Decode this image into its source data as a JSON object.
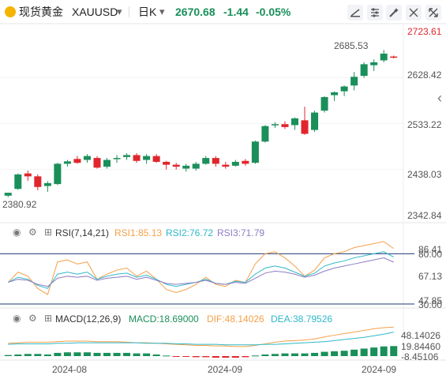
{
  "header": {
    "symbol_name": "现货黄金",
    "symbol_code": "XAUUSD",
    "timeframe": "日K",
    "price": "2670.68",
    "change": "-1.44",
    "change_pct": "-0.05%",
    "icons": [
      "coin-icon",
      "symbol-dropdown-icon",
      "timeframe-dropdown-icon",
      "draw-line-icon",
      "settings-icon",
      "magic-icon",
      "collapse-icon",
      "expand-icon"
    ]
  },
  "price_panel": {
    "y_ticks": [
      "2723.61",
      "2628.42",
      "2533.22",
      "2438.03",
      "2342.84"
    ],
    "high_label": "2685.53",
    "low_label": "2380.92",
    "side_arrow": "‹"
  },
  "rsi_panel": {
    "title": "RSI(7,14,21)",
    "rsi1": "RSI1:85.13",
    "rsi2": "RSI2:76.72",
    "rsi3": "RSI3:71.79",
    "y_ticks": [
      "86.41",
      "80.00",
      "67.13",
      "47.85",
      "30.00"
    ]
  },
  "macd_panel": {
    "title": "MACD(12,26,9)",
    "macd": "MACD:18.69000",
    "dif": "DIF:48.14026",
    "dea": "DEA:38.79526",
    "y_ticks": [
      "48.14026",
      "19.84460",
      "-8.45106"
    ]
  },
  "x_axis": [
    "2024-08",
    "2024-09",
    "2024-09"
  ],
  "colors": {
    "up": "#1a8f5a",
    "down": "#e0262c",
    "rsi1": "#f5a04a",
    "rsi2": "#2fb8c8",
    "rsi3": "#8e7cc3",
    "dif": "#f5a04a",
    "dea": "#2fb8c8",
    "accent": "#1e6fd9"
  },
  "chart_data": {
    "type": "candlestick",
    "ylim": [
      2342.84,
      2723.61
    ],
    "candles": [
      [
        2384,
        2390,
        2380.92,
        2390
      ],
      [
        2398,
        2430,
        2396,
        2428
      ],
      [
        2430,
        2436,
        2415,
        2424
      ],
      [
        2424,
        2428,
        2395,
        2402
      ],
      [
        2404,
        2414,
        2392,
        2410
      ],
      [
        2408,
        2452,
        2406,
        2450
      ],
      [
        2450,
        2458,
        2444,
        2455
      ],
      [
        2460,
        2466,
        2450,
        2452
      ],
      [
        2458,
        2470,
        2452,
        2466
      ],
      [
        2462,
        2466,
        2440,
        2442
      ],
      [
        2444,
        2462,
        2440,
        2458
      ],
      [
        2460,
        2468,
        2452,
        2462
      ],
      [
        2464,
        2472,
        2458,
        2468
      ],
      [
        2468,
        2472,
        2452,
        2456
      ],
      [
        2458,
        2470,
        2450,
        2466
      ],
      [
        2466,
        2470,
        2452,
        2454
      ],
      [
        2454,
        2456,
        2438,
        2448
      ],
      [
        2448,
        2452,
        2438,
        2444
      ],
      [
        2440,
        2450,
        2434,
        2446
      ],
      [
        2440,
        2454,
        2436,
        2450
      ],
      [
        2450,
        2466,
        2448,
        2462
      ],
      [
        2462,
        2466,
        2444,
        2450
      ],
      [
        2448,
        2454,
        2440,
        2444
      ],
      [
        2446,
        2458,
        2444,
        2454
      ],
      [
        2456,
        2460,
        2446,
        2450
      ],
      [
        2452,
        2498,
        2450,
        2496
      ],
      [
        2496,
        2530,
        2494,
        2528
      ],
      [
        2530,
        2536,
        2524,
        2532
      ],
      [
        2532,
        2538,
        2522,
        2526
      ],
      [
        2530,
        2546,
        2520,
        2544
      ],
      [
        2540,
        2568,
        2510,
        2512
      ],
      [
        2520,
        2560,
        2516,
        2556
      ],
      [
        2560,
        2590,
        2556,
        2588
      ],
      [
        2592,
        2600,
        2580,
        2598
      ],
      [
        2600,
        2612,
        2590,
        2610
      ],
      [
        2612,
        2640,
        2602,
        2630
      ],
      [
        2632,
        2660,
        2628,
        2656
      ],
      [
        2654,
        2666,
        2642,
        2660
      ],
      [
        2664,
        2685.53,
        2660,
        2678
      ],
      [
        2672,
        2674,
        2668,
        2670.68
      ]
    ],
    "rsi": {
      "rsi1": [
        52,
        62,
        58,
        46,
        40,
        72,
        74,
        70,
        72,
        55,
        60,
        64,
        66,
        58,
        63,
        55,
        45,
        42,
        45,
        50,
        57,
        50,
        48,
        54,
        52,
        70,
        80,
        82,
        76,
        68,
        58,
        64,
        76,
        80,
        82,
        86,
        88,
        90,
        92,
        85.13
      ],
      "rsi2": [
        52,
        57,
        55,
        49,
        46,
        60,
        62,
        60,
        62,
        55,
        58,
        60,
        61,
        57,
        59,
        55,
        50,
        48,
        50,
        52,
        55,
        51,
        50,
        53,
        52,
        60,
        66,
        68,
        66,
        62,
        58,
        61,
        68,
        71,
        73,
        76,
        78,
        80,
        82,
        76.72
      ],
      "rsi3": [
        52,
        55,
        54,
        50,
        48,
        56,
        58,
        57,
        58,
        54,
        56,
        57,
        58,
        55,
        57,
        54,
        51,
        50,
        51,
        52,
        54,
        51,
        50,
        52,
        51,
        56,
        61,
        63,
        62,
        60,
        57,
        59,
        63,
        66,
        68,
        70,
        72,
        74,
        76,
        71.79
      ]
    },
    "macd": {
      "hist": [
        2,
        3,
        4,
        4,
        3,
        6,
        7,
        7,
        7,
        6,
        6,
        6,
        6,
        5,
        5,
        3,
        1,
        -1,
        -1,
        -2,
        -2,
        -3,
        -3,
        -3,
        -2,
        1,
        3,
        4,
        5,
        5,
        5,
        6,
        8,
        9,
        10,
        12,
        14,
        16,
        18,
        18.69
      ],
      "dif": [
        18,
        19,
        20,
        20,
        20,
        21,
        22,
        22,
        22,
        21,
        21,
        21,
        20,
        19,
        19,
        18,
        17,
        16,
        15,
        14,
        14,
        13,
        13,
        12,
        12,
        14,
        17,
        20,
        22,
        23,
        24,
        26,
        30,
        33,
        36,
        39,
        42,
        45,
        47,
        48.14
      ],
      "dea": [
        16,
        17,
        17,
        17,
        17,
        18,
        18,
        19,
        19,
        19,
        19,
        19,
        19,
        19,
        18,
        18,
        18,
        17,
        17,
        16,
        16,
        16,
        15,
        15,
        15,
        15,
        16,
        16,
        17,
        18,
        19,
        20,
        21,
        23,
        25,
        27,
        29,
        32,
        35,
        38.8
      ]
    }
  }
}
